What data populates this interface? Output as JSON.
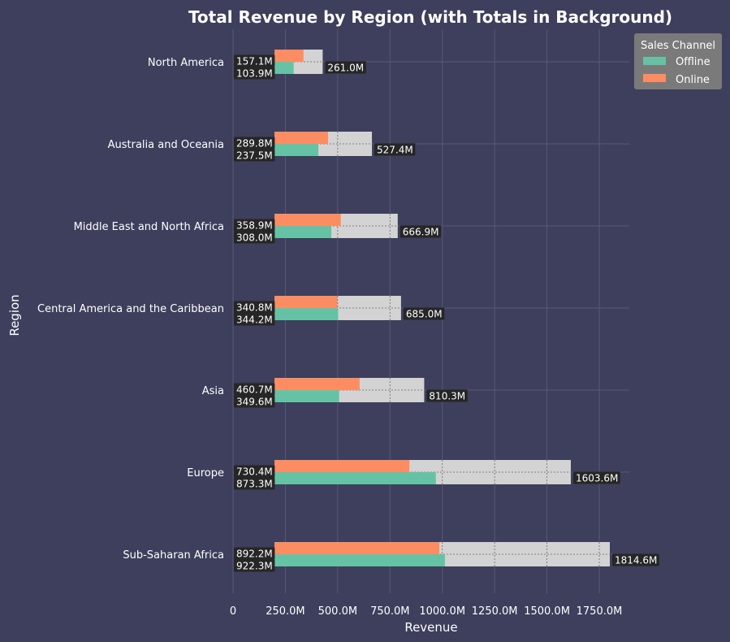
{
  "chart_data": {
    "type": "bar",
    "orientation": "horizontal",
    "title": "Total Revenue by Region (with Totals in Background)",
    "xlabel": "Revenue",
    "ylabel": "Region",
    "xlim": [
      0,
      1900
    ],
    "x_ticks": [
      0,
      250,
      500,
      750,
      1000,
      1250,
      1500,
      1750
    ],
    "x_tick_labels": [
      "0",
      "250.0M",
      "500.0M",
      "750.0M",
      "1000.0M",
      "1250.0M",
      "1500.0M",
      "1750.0M"
    ],
    "grid": true,
    "legend": {
      "title": "Sales Channel",
      "position": "top-right"
    },
    "categories": [
      "North America",
      "Australia and Oceania",
      "Middle East and North Africa",
      "Central America and the Caribbean",
      "Asia",
      "Europe",
      "Sub-Saharan Africa"
    ],
    "series": [
      {
        "name": "Offline",
        "color": "#66c2a5",
        "values": [
          103.9,
          237.5,
          308.0,
          344.2,
          349.6,
          873.3,
          922.3
        ],
        "labels": [
          "103.9M",
          "237.5M",
          "308.0M",
          "344.2M",
          "349.6M",
          "873.3M",
          "922.3M"
        ]
      },
      {
        "name": "Online",
        "color": "#fc8d62",
        "values": [
          157.1,
          289.8,
          358.9,
          340.8,
          460.7,
          730.4,
          892.2
        ],
        "labels": [
          "157.1M",
          "289.8M",
          "358.9M",
          "340.8M",
          "460.7M",
          "730.4M",
          "892.2M"
        ]
      }
    ],
    "totals": {
      "color": "#d3d3d3",
      "values": [
        261.0,
        527.4,
        666.9,
        685.0,
        810.3,
        1603.6,
        1814.6
      ],
      "labels": [
        "261.0M",
        "527.4M",
        "666.9M",
        "685.0M",
        "810.3M",
        "1603.6M",
        "1814.6M"
      ]
    }
  }
}
